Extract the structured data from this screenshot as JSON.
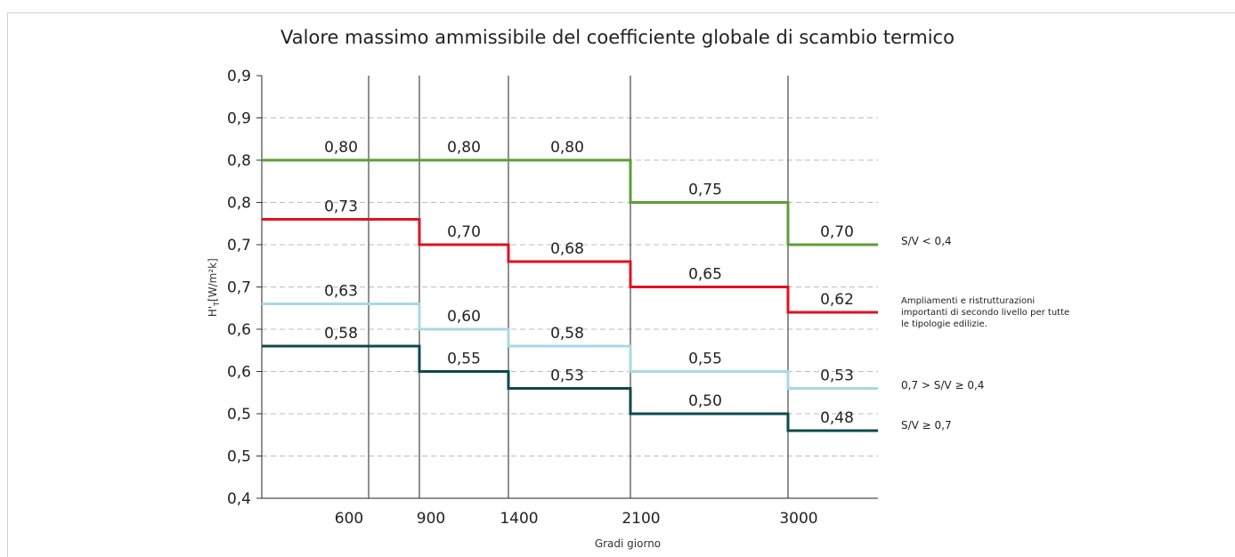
{
  "chart_data": {
    "type": "line",
    "title": "Valore massimo ammissibile del coefficiente globale di scambio termico",
    "xlabel": "Gradi giorno",
    "ylabel": "H'T [W/m²k]",
    "ylabel_main": "H'",
    "ylabel_sub": "T",
    "ylabel_unit": "[W/m²k]",
    "y_tick_labels": [
      "0,9",
      "0,9",
      "0,8",
      "0,8",
      "0,7",
      "0,7",
      "0,6",
      "0,6",
      "0,5",
      "0,5",
      "0,4"
    ],
    "x_tick_labels": [
      "600",
      "900",
      "1400",
      "2100",
      "3000"
    ],
    "ylim": [
      0.4,
      0.9
    ],
    "grid": true,
    "series": [
      {
        "name": "S/V < 0,4",
        "color": "#5d9e35",
        "values": [
          0.8,
          0.8,
          0.8,
          0.75,
          0.7
        ],
        "labels": [
          "0,80",
          "0,80",
          "0,80",
          "0,75",
          "0,70"
        ]
      },
      {
        "name": "Ampliamenti e ristrutturazioni importanti di secondo livello per tutte le tipologie edilizie.",
        "color": "#e0121f",
        "values": [
          0.73,
          0.7,
          0.68,
          0.65,
          0.62
        ],
        "labels": [
          "0,73",
          "0,70",
          "0,68",
          "0,65",
          "0,62"
        ]
      },
      {
        "name": "0,7 > S/V ≥ 0,4",
        "color": "#a9d8e4",
        "values": [
          0.63,
          0.6,
          0.58,
          0.55,
          0.53
        ],
        "labels": [
          "0,63",
          "0,60",
          "0,58",
          "0,55",
          "0,53"
        ]
      },
      {
        "name": "S/V ≥ 0,7",
        "color": "#0d4a4c",
        "values": [
          0.58,
          0.55,
          0.53,
          0.5,
          0.48
        ],
        "labels": [
          "0,58",
          "0,55",
          "0,53",
          "0,50",
          "0,48"
        ]
      }
    ]
  },
  "legend": {
    "green": "S/V < 0,4",
    "red": "Ampliamenti e ristrutturazioni importanti di secondo livello per tutte le tipologie edilizie.",
    "light": "0,7 > S/V ≥ 0,4",
    "dark": "S/V ≥ 0,7"
  }
}
